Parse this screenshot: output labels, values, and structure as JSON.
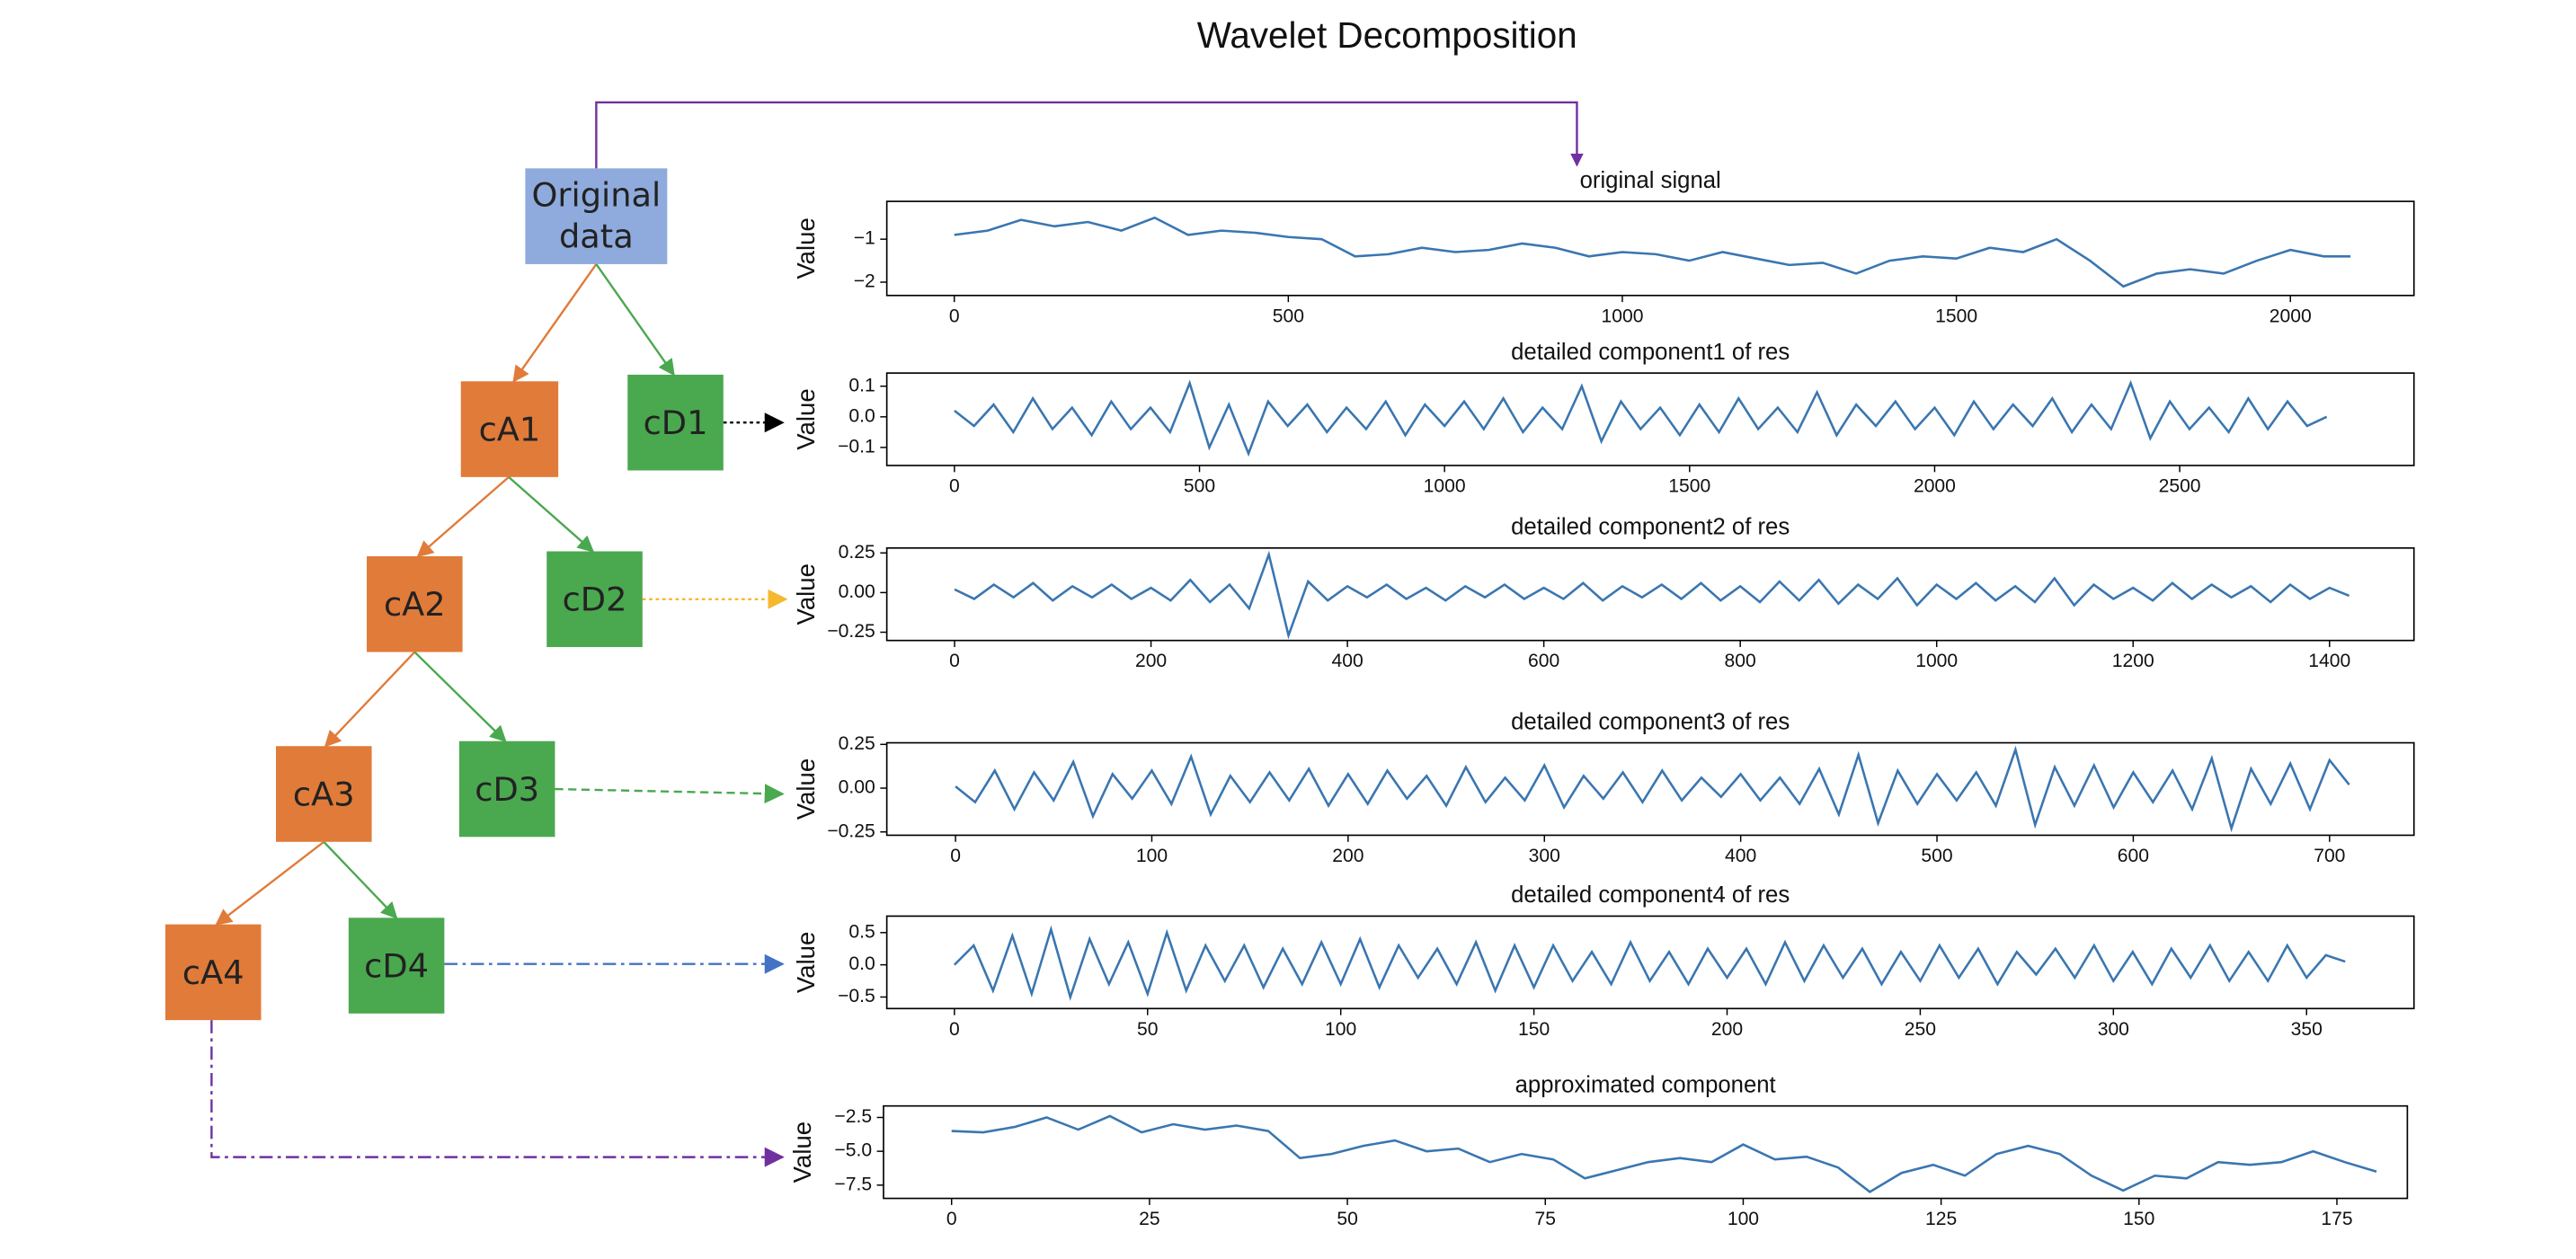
{
  "title": "Wavelet Decomposition",
  "nodes": [
    {
      "label": "Original data"
    },
    {
      "label": "cA1"
    },
    {
      "label": "cD1"
    },
    {
      "label": "cA2"
    },
    {
      "label": "cD2"
    },
    {
      "label": "cA3"
    },
    {
      "label": "cD3"
    },
    {
      "label": "cA4"
    },
    {
      "label": "cD4"
    }
  ],
  "chart_data": [
    {
      "type": "line",
      "title": "original signal",
      "ylabel": "Value",
      "x": [
        0,
        50,
        100,
        150,
        200,
        250,
        300,
        350,
        400,
        450,
        500,
        550,
        600,
        650,
        700,
        750,
        800,
        850,
        900,
        950,
        1000,
        1050,
        1100,
        1150,
        1200,
        1250,
        1300,
        1350,
        1400,
        1450,
        1500,
        1550,
        1600,
        1650,
        1700,
        1750,
        1800,
        1850,
        1900,
        1950,
        2000,
        2050,
        2090
      ],
      "series": [
        {
          "color": "#3a76b0",
          "values": [
            -0.9,
            -0.8,
            -0.55,
            -0.7,
            -0.6,
            -0.8,
            -0.5,
            -0.9,
            -0.8,
            -0.85,
            -0.95,
            -1.0,
            -1.4,
            -1.35,
            -1.2,
            -1.3,
            -1.25,
            -1.1,
            -1.2,
            -1.4,
            -1.3,
            -1.35,
            -1.5,
            -1.3,
            -1.45,
            -1.6,
            -1.55,
            -1.8,
            -1.5,
            -1.4,
            -1.45,
            -1.2,
            -1.3,
            -1.0,
            -1.5,
            -2.1,
            -1.8,
            -1.7,
            -1.8,
            -1.5,
            -1.25,
            -1.4,
            -1.4
          ]
        }
      ],
      "xlim": [
        -101,
        2185
      ],
      "ylim": [
        -2.31,
        -0.12
      ],
      "xticks": [
        0,
        500,
        1000,
        1500,
        2000
      ],
      "yticks": [
        {
          "value": -2,
          "label": "−2"
        },
        {
          "value": -1,
          "label": "−1"
        }
      ]
    },
    {
      "type": "line",
      "title": "detailed component1 of res",
      "ylabel": "Value",
      "x": [
        0,
        40,
        80,
        120,
        160,
        200,
        240,
        280,
        320,
        360,
        400,
        440,
        480,
        520,
        560,
        600,
        640,
        680,
        720,
        760,
        800,
        840,
        880,
        920,
        960,
        1000,
        1040,
        1080,
        1120,
        1160,
        1200,
        1240,
        1280,
        1320,
        1360,
        1400,
        1440,
        1480,
        1520,
        1560,
        1600,
        1640,
        1680,
        1720,
        1760,
        1800,
        1840,
        1880,
        1920,
        1960,
        2000,
        2040,
        2080,
        2120,
        2160,
        2200,
        2240,
        2280,
        2320,
        2360,
        2400,
        2440,
        2480,
        2520,
        2560,
        2600,
        2640,
        2680,
        2720,
        2760,
        2800
      ],
      "series": [
        {
          "color": "#3a76b0",
          "values": [
            0.02,
            -0.03,
            0.04,
            -0.05,
            0.06,
            -0.04,
            0.03,
            -0.06,
            0.05,
            -0.04,
            0.03,
            -0.05,
            0.11,
            -0.1,
            0.04,
            -0.12,
            0.05,
            -0.03,
            0.04,
            -0.05,
            0.03,
            -0.04,
            0.05,
            -0.06,
            0.04,
            -0.03,
            0.05,
            -0.04,
            0.06,
            -0.05,
            0.03,
            -0.04,
            0.1,
            -0.08,
            0.05,
            -0.04,
            0.03,
            -0.06,
            0.04,
            -0.05,
            0.06,
            -0.04,
            0.03,
            -0.05,
            0.08,
            -0.06,
            0.04,
            -0.03,
            0.05,
            -0.04,
            0.03,
            -0.06,
            0.05,
            -0.04,
            0.04,
            -0.03,
            0.06,
            -0.05,
            0.04,
            -0.04,
            0.11,
            -0.07,
            0.05,
            -0.04,
            0.03,
            -0.05,
            0.06,
            -0.04,
            0.05,
            -0.03,
            0.0
          ]
        }
      ],
      "xlim": [
        -138,
        2978
      ],
      "ylim": [
        -0.159,
        0.143
      ],
      "xticks": [
        0,
        500,
        1000,
        1500,
        2000,
        2500
      ],
      "yticks": [
        {
          "value": -0.1,
          "label": "−0.1"
        },
        {
          "value": 0,
          "label": "0.0"
        },
        0.1
      ]
    },
    {
      "type": "line",
      "title": "detailed component2 of res",
      "ylabel": "Value",
      "x": [
        0,
        20,
        40,
        60,
        80,
        100,
        120,
        140,
        160,
        180,
        200,
        220,
        240,
        260,
        280,
        300,
        320,
        340,
        360,
        380,
        400,
        420,
        440,
        460,
        480,
        500,
        520,
        540,
        560,
        580,
        600,
        620,
        640,
        660,
        680,
        700,
        720,
        740,
        760,
        780,
        800,
        820,
        840,
        860,
        880,
        900,
        920,
        940,
        960,
        980,
        1000,
        1020,
        1040,
        1060,
        1080,
        1100,
        1120,
        1140,
        1160,
        1180,
        1200,
        1220,
        1240,
        1260,
        1280,
        1300,
        1320,
        1340,
        1360,
        1380,
        1400,
        1420
      ],
      "series": [
        {
          "color": "#3a76b0",
          "values": [
            0.02,
            -0.04,
            0.05,
            -0.03,
            0.06,
            -0.05,
            0.04,
            -0.03,
            0.05,
            -0.04,
            0.03,
            -0.05,
            0.08,
            -0.06,
            0.05,
            -0.1,
            0.24,
            -0.27,
            0.07,
            -0.05,
            0.04,
            -0.03,
            0.05,
            -0.04,
            0.03,
            -0.05,
            0.04,
            -0.03,
            0.05,
            -0.04,
            0.03,
            -0.04,
            0.06,
            -0.05,
            0.04,
            -0.03,
            0.05,
            -0.04,
            0.06,
            -0.05,
            0.04,
            -0.06,
            0.07,
            -0.05,
            0.08,
            -0.07,
            0.05,
            -0.04,
            0.09,
            -0.08,
            0.05,
            -0.04,
            0.06,
            -0.05,
            0.04,
            -0.06,
            0.09,
            -0.08,
            0.05,
            -0.04,
            0.03,
            -0.05,
            0.06,
            -0.04,
            0.05,
            -0.03,
            0.04,
            -0.06,
            0.05,
            -0.04,
            0.03,
            -0.02
          ]
        }
      ],
      "xlim": [
        -69,
        1486
      ],
      "ylim": [
        -0.302,
        0.281
      ],
      "xticks": [
        0,
        200,
        400,
        600,
        800,
        1000,
        1200,
        1400
      ],
      "yticks": [
        {
          "value": -0.25,
          "label": "−0.25"
        },
        {
          "value": 0,
          "label": "0.00"
        },
        0.25
      ]
    },
    {
      "type": "line",
      "title": "detailed component3 of res",
      "ylabel": "Value",
      "x": [
        0,
        10,
        20,
        30,
        40,
        50,
        60,
        70,
        80,
        90,
        100,
        110,
        120,
        130,
        140,
        150,
        160,
        170,
        180,
        190,
        200,
        210,
        220,
        230,
        240,
        250,
        260,
        270,
        280,
        290,
        300,
        310,
        320,
        330,
        340,
        350,
        360,
        370,
        380,
        390,
        400,
        410,
        420,
        430,
        440,
        450,
        460,
        470,
        480,
        490,
        500,
        510,
        520,
        530,
        540,
        550,
        560,
        570,
        580,
        590,
        600,
        610,
        620,
        630,
        640,
        650,
        660,
        670,
        680,
        690,
        700,
        710
      ],
      "series": [
        {
          "color": "#3a76b0",
          "values": [
            0.01,
            -0.08,
            0.1,
            -0.12,
            0.09,
            -0.07,
            0.15,
            -0.16,
            0.08,
            -0.06,
            0.1,
            -0.09,
            0.18,
            -0.15,
            0.07,
            -0.08,
            0.09,
            -0.07,
            0.11,
            -0.1,
            0.08,
            -0.09,
            0.1,
            -0.06,
            0.07,
            -0.1,
            0.12,
            -0.08,
            0.06,
            -0.07,
            0.13,
            -0.11,
            0.07,
            -0.06,
            0.09,
            -0.08,
            0.1,
            -0.07,
            0.06,
            -0.05,
            0.08,
            -0.07,
            0.06,
            -0.09,
            0.11,
            -0.15,
            0.19,
            -0.2,
            0.1,
            -0.09,
            0.08,
            -0.07,
            0.09,
            -0.1,
            0.22,
            -0.21,
            0.12,
            -0.1,
            0.13,
            -0.11,
            0.09,
            -0.08,
            0.1,
            -0.12,
            0.17,
            -0.23,
            0.11,
            -0.09,
            0.14,
            -0.12,
            0.16,
            0.02
          ]
        }
      ],
      "xlim": [
        -35,
        743
      ],
      "ylim": [
        -0.269,
        0.259
      ],
      "xticks": [
        0,
        100,
        200,
        300,
        400,
        500,
        600,
        700
      ],
      "yticks": [
        {
          "value": -0.25,
          "label": "−0.25"
        },
        {
          "value": 0,
          "label": "0.00"
        },
        0.25
      ]
    },
    {
      "type": "line",
      "title": "detailed component4 of res",
      "ylabel": "Value",
      "x": [
        0,
        5,
        10,
        15,
        20,
        25,
        30,
        35,
        40,
        45,
        50,
        55,
        60,
        65,
        70,
        75,
        80,
        85,
        90,
        95,
        100,
        105,
        110,
        115,
        120,
        125,
        130,
        135,
        140,
        145,
        150,
        155,
        160,
        165,
        170,
        175,
        180,
        185,
        190,
        195,
        200,
        205,
        210,
        215,
        220,
        225,
        230,
        235,
        240,
        245,
        250,
        255,
        260,
        265,
        270,
        275,
        280,
        285,
        290,
        295,
        300,
        305,
        310,
        315,
        320,
        325,
        330,
        335,
        340,
        345,
        350,
        355,
        360
      ],
      "series": [
        {
          "color": "#3a76b0",
          "values": [
            0.0,
            0.3,
            -0.4,
            0.45,
            -0.45,
            0.55,
            -0.5,
            0.4,
            -0.3,
            0.35,
            -0.45,
            0.5,
            -0.4,
            0.3,
            -0.25,
            0.3,
            -0.35,
            0.25,
            -0.3,
            0.35,
            -0.3,
            0.4,
            -0.35,
            0.3,
            -0.2,
            0.25,
            -0.3,
            0.35,
            -0.4,
            0.3,
            -0.35,
            0.3,
            -0.25,
            0.2,
            -0.3,
            0.35,
            -0.25,
            0.2,
            -0.3,
            0.25,
            -0.2,
            0.25,
            -0.3,
            0.35,
            -0.25,
            0.3,
            -0.2,
            0.25,
            -0.3,
            0.2,
            -0.25,
            0.3,
            -0.2,
            0.25,
            -0.3,
            0.2,
            -0.15,
            0.25,
            -0.2,
            0.3,
            -0.25,
            0.2,
            -0.3,
            0.25,
            -0.2,
            0.3,
            -0.25,
            0.2,
            -0.25,
            0.3,
            -0.2,
            0.15,
            0.05
          ]
        }
      ],
      "xlim": [
        -17.5,
        377.8
      ],
      "ylim": [
        -0.679,
        0.756
      ],
      "xticks": [
        0,
        50,
        100,
        150,
        200,
        250,
        300,
        350
      ],
      "yticks": [
        {
          "value": -0.5,
          "label": "−0.5"
        },
        {
          "value": 0,
          "label": "0.0"
        },
        0.5
      ]
    },
    {
      "type": "line",
      "title": "approximated component",
      "ylabel": "Value",
      "x": [
        0,
        4,
        8,
        12,
        16,
        20,
        24,
        28,
        32,
        36,
        40,
        44,
        48,
        52,
        56,
        60,
        64,
        68,
        72,
        76,
        80,
        84,
        88,
        92,
        96,
        100,
        104,
        108,
        112,
        116,
        120,
        124,
        128,
        132,
        136,
        140,
        144,
        148,
        152,
        156,
        160,
        164,
        168,
        172,
        176,
        180
      ],
      "series": [
        {
          "color": "#3a76b0",
          "values": [
            -3.5,
            -3.6,
            -3.2,
            -2.5,
            -3.4,
            -2.4,
            -3.6,
            -3.0,
            -3.4,
            -3.1,
            -3.5,
            -5.5,
            -5.2,
            -4.6,
            -4.2,
            -5.0,
            -4.8,
            -5.8,
            -5.2,
            -5.6,
            -7.0,
            -6.4,
            -5.8,
            -5.5,
            -5.8,
            -4.5,
            -5.6,
            -5.4,
            -6.2,
            -8.0,
            -6.6,
            -6.0,
            -6.8,
            -5.2,
            -4.6,
            -5.2,
            -6.8,
            -7.9,
            -6.8,
            -7.0,
            -5.8,
            -6.0,
            -5.8,
            -5.0,
            -5.8,
            -6.5
          ]
        }
      ],
      "xlim": [
        -8.6,
        183.9
      ],
      "ylim": [
        -8.48,
        -1.65
      ],
      "xticks": [
        0,
        25,
        50,
        75,
        100,
        125,
        150,
        175
      ],
      "yticks": [
        {
          "value": -7.5,
          "label": "−7.5"
        },
        {
          "value": -5,
          "label": "−5.0"
        },
        {
          "value": -2.5,
          "label": "−2.5"
        }
      ]
    }
  ]
}
